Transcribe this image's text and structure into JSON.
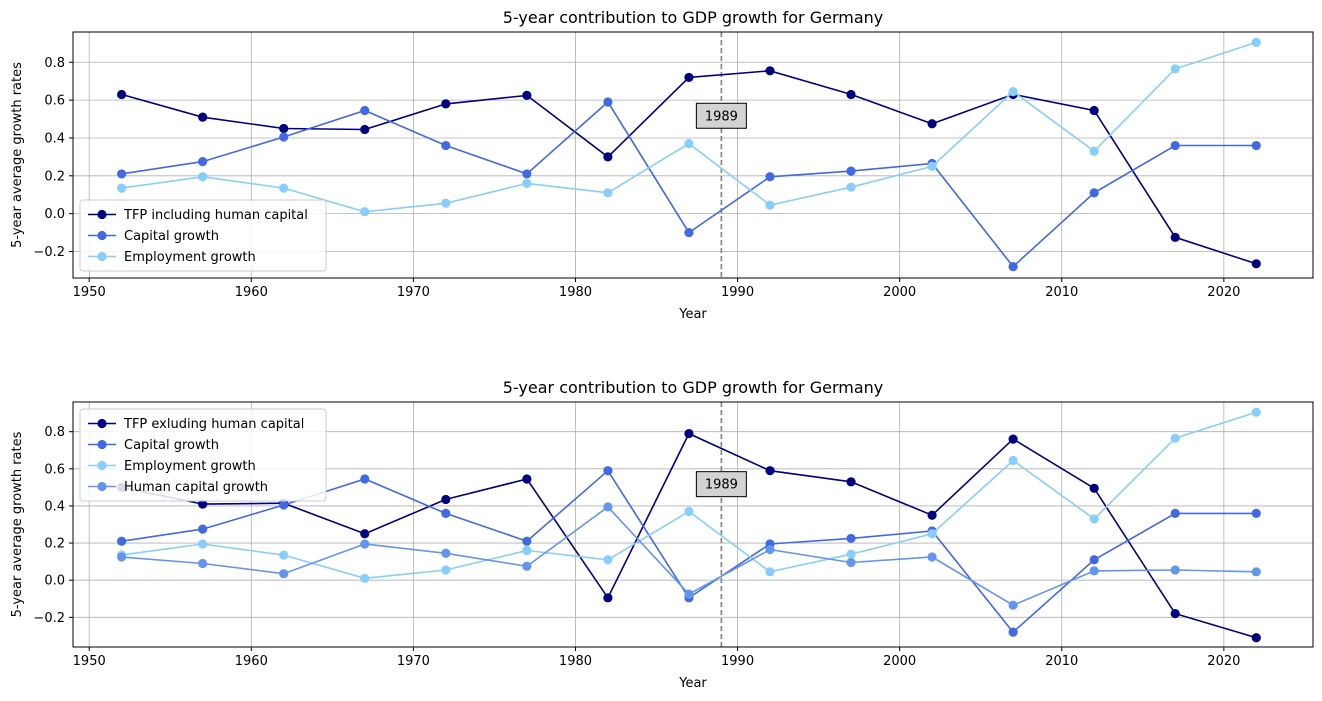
{
  "chart_data": [
    {
      "type": "line",
      "title": "5-year contribution to GDP growth for Germany",
      "xlabel": "Year",
      "ylabel": "5-year average growth rates",
      "xlim": [
        1949,
        2025.5
      ],
      "ylim": [
        -0.34,
        0.96
      ],
      "xticks": [
        1950,
        1960,
        1970,
        1980,
        1990,
        2000,
        2010,
        2020
      ],
      "yticks": [
        -0.2,
        0.0,
        0.2,
        0.4,
        0.6,
        0.8
      ],
      "ytick_labels": [
        "−0.2",
        "0.0",
        "0.2",
        "0.4",
        "0.6",
        "0.8"
      ],
      "grid": true,
      "legend": "lower-left",
      "vline": {
        "x": 1989,
        "label": "1989"
      },
      "x": [
        1952,
        1957,
        1962,
        1967,
        1972,
        1977,
        1982,
        1987,
        1992,
        1997,
        2002,
        2007,
        2012,
        2017,
        2022
      ],
      "series": [
        {
          "name": "TFP including human capital",
          "color": "#000080",
          "values": [
            0.63,
            0.51,
            0.45,
            0.445,
            0.58,
            0.625,
            0.3,
            0.72,
            0.755,
            0.63,
            0.475,
            0.63,
            0.545,
            -0.125,
            -0.265
          ]
        },
        {
          "name": "Capital growth",
          "color": "#4169E1",
          "values": [
            0.21,
            0.275,
            0.405,
            0.545,
            0.36,
            0.21,
            0.59,
            -0.1,
            0.195,
            0.225,
            0.265,
            -0.28,
            0.11,
            0.36,
            0.36
          ]
        },
        {
          "name": "Employment growth",
          "color": "#87CEFA",
          "values": [
            0.135,
            0.195,
            0.135,
            0.01,
            0.055,
            0.16,
            0.11,
            0.37,
            0.045,
            0.14,
            0.25,
            0.645,
            0.33,
            0.765,
            0.905
          ]
        }
      ]
    },
    {
      "type": "line",
      "title": "5-year contribution to GDP growth for Germany",
      "xlabel": "Year",
      "ylabel": "5-year average growth rates",
      "xlim": [
        1949,
        2025.5
      ],
      "ylim": [
        -0.36,
        0.96
      ],
      "xticks": [
        1950,
        1960,
        1970,
        1980,
        1990,
        2000,
        2010,
        2020
      ],
      "yticks": [
        -0.2,
        0.0,
        0.2,
        0.4,
        0.6,
        0.8
      ],
      "ytick_labels": [
        "−0.2",
        "0.0",
        "0.2",
        "0.4",
        "0.6",
        "0.8"
      ],
      "grid": true,
      "legend": "upper-left",
      "vline": {
        "x": 1989,
        "label": "1989"
      },
      "x": [
        1952,
        1957,
        1962,
        1967,
        1972,
        1977,
        1982,
        1987,
        1992,
        1997,
        2002,
        2007,
        2012,
        2017,
        2022
      ],
      "series": [
        {
          "name": "TFP exluding human capital",
          "color": "#000080",
          "values": [
            0.5,
            0.41,
            0.415,
            0.25,
            0.435,
            0.545,
            -0.095,
            0.79,
            0.59,
            0.53,
            0.35,
            0.76,
            0.495,
            -0.18,
            -0.31
          ]
        },
        {
          "name": "Capital growth",
          "color": "#4169E1",
          "values": [
            0.21,
            0.275,
            0.405,
            0.545,
            0.36,
            0.21,
            0.59,
            -0.095,
            0.195,
            0.225,
            0.265,
            -0.28,
            0.11,
            0.36,
            0.36
          ]
        },
        {
          "name": "Employment growth",
          "color": "#87CEFA",
          "values": [
            0.135,
            0.195,
            0.135,
            0.01,
            0.055,
            0.16,
            0.11,
            0.37,
            0.045,
            0.14,
            0.25,
            0.645,
            0.33,
            0.765,
            0.905
          ]
        },
        {
          "name": "Human capital growth",
          "color": "#6495ED",
          "values": [
            0.125,
            0.09,
            0.035,
            0.195,
            0.145,
            0.075,
            0.395,
            -0.075,
            0.165,
            0.095,
            0.125,
            -0.135,
            0.05,
            0.055,
            0.045
          ]
        }
      ]
    }
  ]
}
